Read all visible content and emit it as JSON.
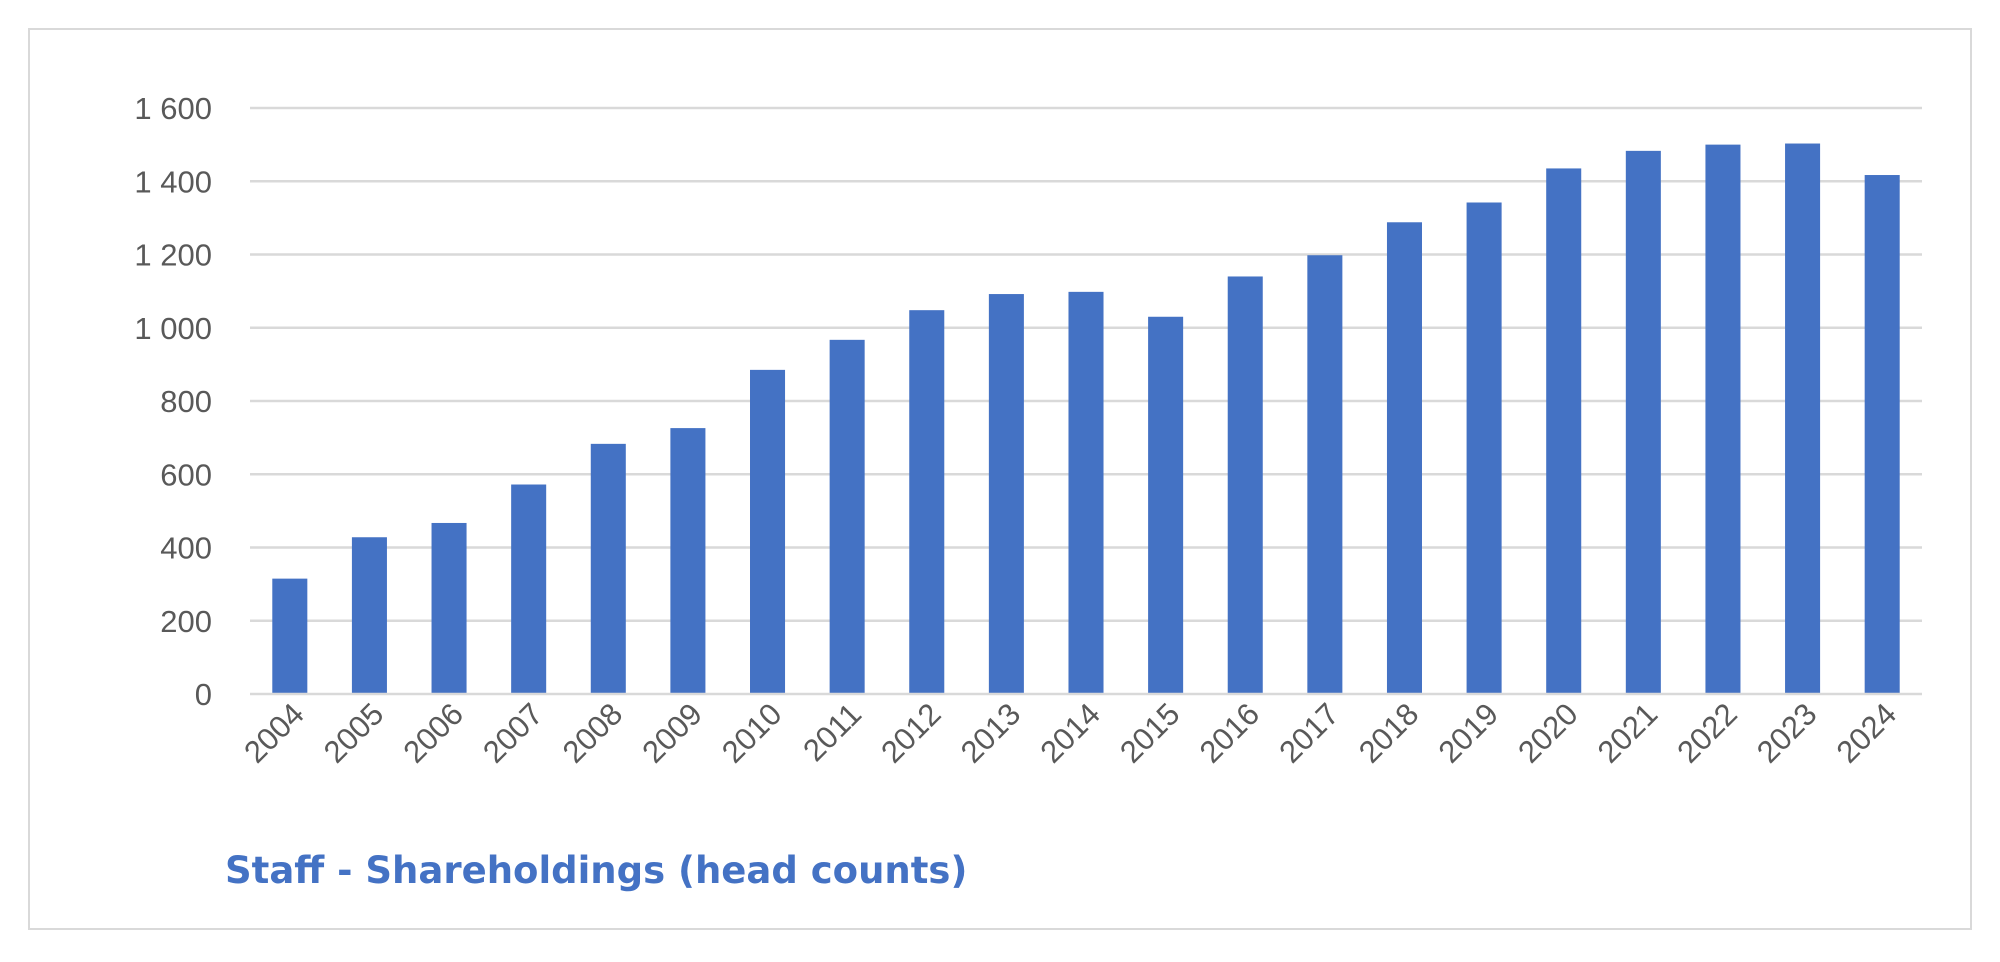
{
  "chart_data": {
    "type": "bar",
    "title": "Staff - Shareholdings (head counts)",
    "xlabel": "",
    "ylabel": "",
    "categories": [
      "2004",
      "2005",
      "2006",
      "2007",
      "2008",
      "2009",
      "2010",
      "2011",
      "2012",
      "2013",
      "2014",
      "2015",
      "2016",
      "2017",
      "2018",
      "2019",
      "2020",
      "2021",
      "2022",
      "2023",
      "2024"
    ],
    "values": [
      315,
      428,
      467,
      572,
      683,
      726,
      885,
      967,
      1048,
      1092,
      1098,
      1030,
      1140,
      1198,
      1288,
      1342,
      1435,
      1483,
      1500,
      1503,
      1417
    ],
    "ylim": [
      0,
      1600
    ],
    "y_ticks": [
      {
        "value": 0,
        "label": "0"
      },
      {
        "value": 200,
        "label": "200"
      },
      {
        "value": 400,
        "label": "400"
      },
      {
        "value": 600,
        "label": "600"
      },
      {
        "value": 800,
        "label": "800"
      },
      {
        "value": 1000,
        "label": "1 000"
      },
      {
        "value": 1200,
        "label": "1 200"
      },
      {
        "value": 1400,
        "label": "1 400"
      },
      {
        "value": 1600,
        "label": "1 600"
      }
    ],
    "grid": true,
    "legend": "none",
    "colors": {
      "bar": "#4472c4",
      "grid": "#d9d9d9",
      "title": "#4472c4",
      "tick_text": "#595959"
    }
  }
}
